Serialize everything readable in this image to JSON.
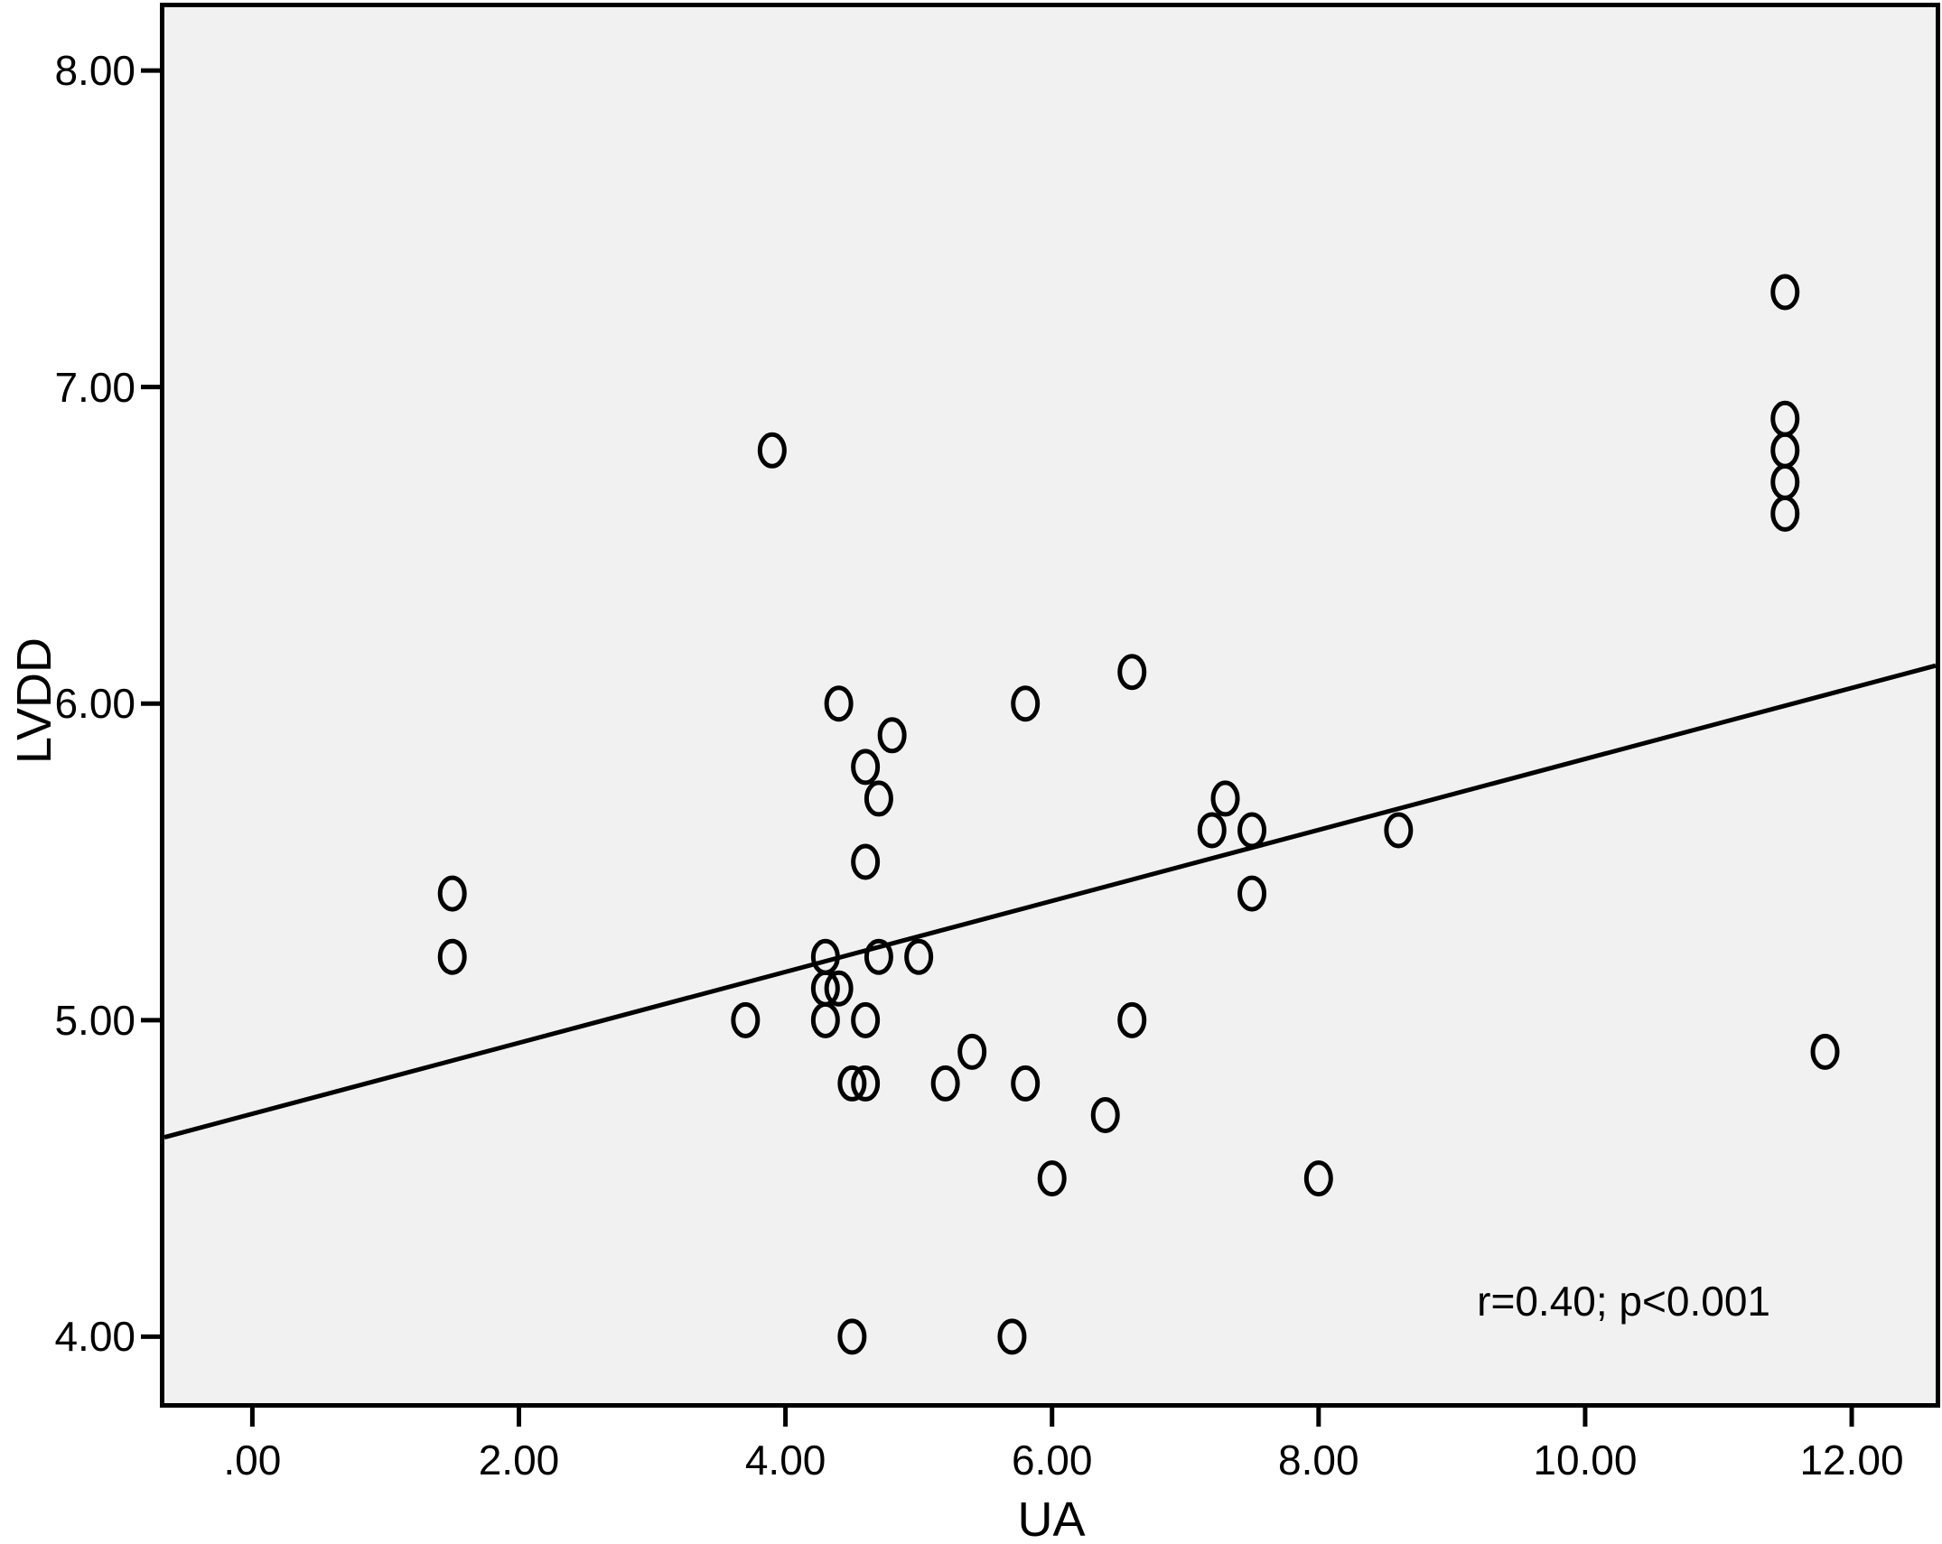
{
  "chart_data": {
    "type": "scatter",
    "title": "",
    "xlabel": "UA",
    "ylabel": "LVDD",
    "annotation": "r=0.40; p<0.001",
    "xlim": [
      -0.66,
      12.63
    ],
    "ylim": [
      3.79,
      8.2
    ],
    "grid": false,
    "legend_position": "none",
    "x_ticks": [
      {
        "value": 0,
        "label": ".00"
      },
      {
        "value": 2,
        "label": "2.00"
      },
      {
        "value": 4,
        "label": "4.00"
      },
      {
        "value": 6,
        "label": "6.00"
      },
      {
        "value": 8,
        "label": "8.00"
      },
      {
        "value": 10,
        "label": "10.00"
      },
      {
        "value": 12,
        "label": "12.00"
      }
    ],
    "y_ticks": [
      {
        "value": 4,
        "label": "4.00"
      },
      {
        "value": 5,
        "label": "5.00"
      },
      {
        "value": 6,
        "label": "6.00"
      },
      {
        "value": 7,
        "label": "7.00"
      },
      {
        "value": 8,
        "label": "8.00"
      }
    ],
    "points": [
      [
        1.5,
        5.4
      ],
      [
        1.5,
        5.2
      ],
      [
        3.7,
        5.0
      ],
      [
        3.9,
        6.8
      ],
      [
        4.3,
        5.2
      ],
      [
        4.3,
        5.1
      ],
      [
        4.3,
        5.0
      ],
      [
        4.4,
        5.1
      ],
      [
        4.4,
        6.0
      ],
      [
        4.5,
        4.0
      ],
      [
        4.5,
        4.8
      ],
      [
        4.6,
        4.8
      ],
      [
        4.6,
        5.0
      ],
      [
        4.6,
        5.5
      ],
      [
        4.6,
        5.8
      ],
      [
        4.7,
        5.2
      ],
      [
        4.7,
        5.7
      ],
      [
        4.8,
        5.9
      ],
      [
        5.0,
        5.2
      ],
      [
        5.2,
        4.8
      ],
      [
        5.4,
        4.9
      ],
      [
        5.7,
        4.0
      ],
      [
        5.8,
        4.8
      ],
      [
        5.8,
        6.0
      ],
      [
        6.0,
        4.5
      ],
      [
        6.4,
        4.7
      ],
      [
        6.6,
        5.0
      ],
      [
        6.6,
        6.1
      ],
      [
        7.2,
        5.6
      ],
      [
        7.3,
        5.7
      ],
      [
        7.5,
        5.4
      ],
      [
        7.5,
        5.6
      ],
      [
        8.0,
        4.5
      ],
      [
        8.6,
        5.6
      ],
      [
        11.5,
        7.3
      ],
      [
        11.5,
        6.9
      ],
      [
        11.5,
        6.8
      ],
      [
        11.5,
        6.7
      ],
      [
        11.5,
        6.6
      ],
      [
        11.8,
        4.9
      ]
    ],
    "trend_line": {
      "x1": -0.66,
      "y1": 4.63,
      "x2": 12.63,
      "y2": 6.12
    },
    "colors": {
      "marker": "#000000",
      "trend_line": "#000000",
      "axis": "#000000",
      "text": "#000000",
      "plot_background": "#f1f1f1",
      "page_background": "#ffffff"
    }
  }
}
